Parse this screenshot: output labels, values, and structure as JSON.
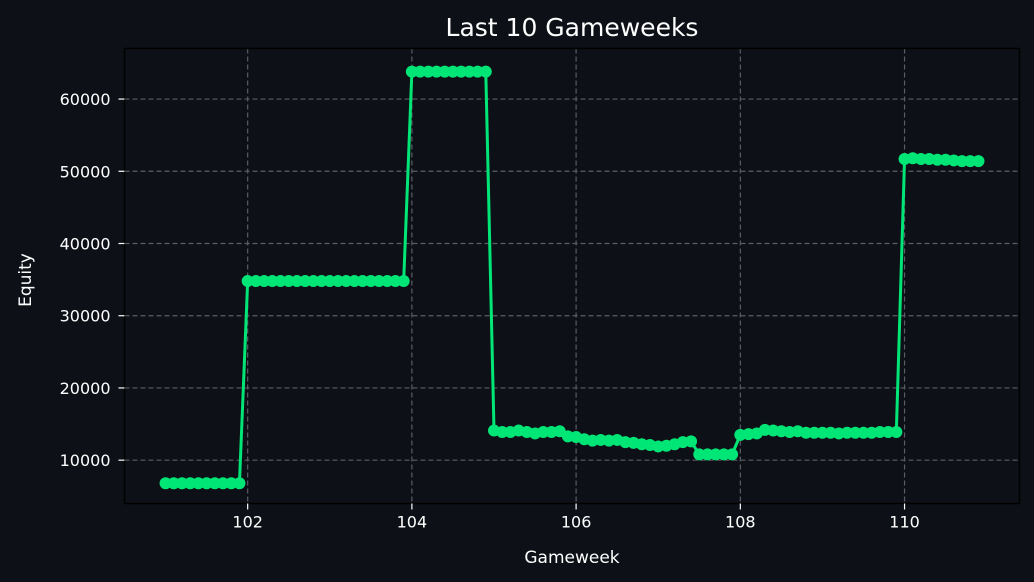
{
  "chart_data": {
    "type": "line",
    "title": "Last 10 Gameweeks",
    "xlabel": "Gameweek",
    "ylabel": "Equity",
    "xlim": [
      100.5,
      111.4
    ],
    "ylim": [
      4000,
      67000
    ],
    "xticks": [
      102,
      104,
      106,
      108,
      110
    ],
    "yticks": [
      10000,
      20000,
      30000,
      40000,
      50000,
      60000
    ],
    "grid": true,
    "legend": "none",
    "series": [
      {
        "color": "#00e676",
        "marker": "circle",
        "points": [
          [
            101.0,
            6800
          ],
          [
            101.1,
            6800
          ],
          [
            101.2,
            6800
          ],
          [
            101.3,
            6800
          ],
          [
            101.4,
            6800
          ],
          [
            101.5,
            6800
          ],
          [
            101.6,
            6800
          ],
          [
            101.7,
            6800
          ],
          [
            101.8,
            6800
          ],
          [
            101.9,
            6800
          ],
          [
            102.0,
            34800
          ],
          [
            102.1,
            34800
          ],
          [
            102.2,
            34800
          ],
          [
            102.3,
            34800
          ],
          [
            102.4,
            34800
          ],
          [
            102.5,
            34800
          ],
          [
            102.6,
            34800
          ],
          [
            102.7,
            34800
          ],
          [
            102.8,
            34800
          ],
          [
            102.9,
            34800
          ],
          [
            103.0,
            34800
          ],
          [
            103.1,
            34800
          ],
          [
            103.2,
            34800
          ],
          [
            103.3,
            34800
          ],
          [
            103.4,
            34800
          ],
          [
            103.5,
            34800
          ],
          [
            103.6,
            34800
          ],
          [
            103.7,
            34800
          ],
          [
            103.8,
            34800
          ],
          [
            103.9,
            34800
          ],
          [
            104.0,
            63800
          ],
          [
            104.1,
            63800
          ],
          [
            104.2,
            63800
          ],
          [
            104.3,
            63800
          ],
          [
            104.4,
            63800
          ],
          [
            104.5,
            63800
          ],
          [
            104.6,
            63800
          ],
          [
            104.7,
            63800
          ],
          [
            104.8,
            63800
          ],
          [
            104.9,
            63800
          ],
          [
            105.0,
            14100
          ],
          [
            105.1,
            13900
          ],
          [
            105.2,
            13900
          ],
          [
            105.3,
            14100
          ],
          [
            105.4,
            13900
          ],
          [
            105.5,
            13700
          ],
          [
            105.6,
            13900
          ],
          [
            105.7,
            13900
          ],
          [
            105.8,
            14000
          ],
          [
            105.9,
            13300
          ],
          [
            106.0,
            13200
          ],
          [
            106.1,
            12900
          ],
          [
            106.2,
            12700
          ],
          [
            106.3,
            12800
          ],
          [
            106.4,
            12700
          ],
          [
            106.5,
            12800
          ],
          [
            106.6,
            12500
          ],
          [
            106.7,
            12400
          ],
          [
            106.8,
            12200
          ],
          [
            106.9,
            12100
          ],
          [
            107.0,
            11900
          ],
          [
            107.1,
            12000
          ],
          [
            107.2,
            12200
          ],
          [
            107.3,
            12500
          ],
          [
            107.4,
            12600
          ],
          [
            107.5,
            10800
          ],
          [
            107.6,
            10800
          ],
          [
            107.7,
            10800
          ],
          [
            107.8,
            10800
          ],
          [
            107.9,
            10800
          ],
          [
            108.0,
            13500
          ],
          [
            108.1,
            13600
          ],
          [
            108.2,
            13700
          ],
          [
            108.3,
            14200
          ],
          [
            108.4,
            14100
          ],
          [
            108.5,
            14000
          ],
          [
            108.6,
            13900
          ],
          [
            108.7,
            14000
          ],
          [
            108.8,
            13800
          ],
          [
            108.9,
            13800
          ],
          [
            109.0,
            13800
          ],
          [
            109.1,
            13800
          ],
          [
            109.2,
            13700
          ],
          [
            109.3,
            13800
          ],
          [
            109.4,
            13800
          ],
          [
            109.5,
            13800
          ],
          [
            109.6,
            13800
          ],
          [
            109.7,
            13900
          ],
          [
            109.8,
            13900
          ],
          [
            109.9,
            13900
          ],
          [
            110.0,
            51700
          ],
          [
            110.1,
            51800
          ],
          [
            110.2,
            51700
          ],
          [
            110.3,
            51700
          ],
          [
            110.4,
            51600
          ],
          [
            110.5,
            51600
          ],
          [
            110.6,
            51500
          ],
          [
            110.7,
            51400
          ],
          [
            110.8,
            51400
          ],
          [
            110.9,
            51400
          ]
        ]
      }
    ]
  },
  "colors": {
    "background": "#0d1117",
    "grid": "#5a5d63",
    "line": "#00e676",
    "text": "#ffffff"
  }
}
